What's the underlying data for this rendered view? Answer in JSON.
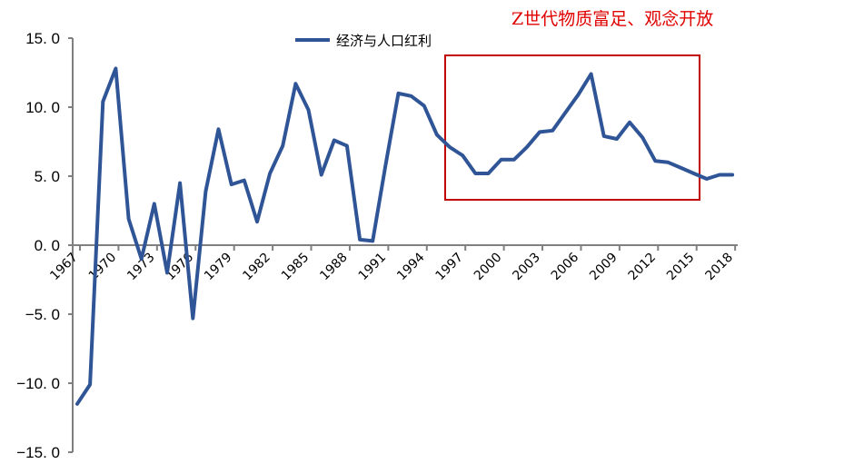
{
  "chart_data": {
    "type": "line",
    "title": "",
    "xlabel": "",
    "ylabel": "",
    "ylim": [
      -15,
      15
    ],
    "yticks": [
      "15.0",
      "10.0",
      "5.0",
      "0.0",
      "-5.0",
      "-10.0",
      "-15.0"
    ],
    "xtick_labels": [
      "1967",
      "1970",
      "1973",
      "1976",
      "1979",
      "1982",
      "1985",
      "1988",
      "1991",
      "1994",
      "1997",
      "2000",
      "2003",
      "2006",
      "2009",
      "2012",
      "2015",
      "2018"
    ],
    "grid": false,
    "legend_position": "top-center",
    "annotation": "Z世代物质富足、观念开放",
    "highlight_box": {
      "x_from": 1997,
      "x_to": 2016,
      "color": "#c00000"
    },
    "series": [
      {
        "name": "经济与人口红利",
        "color": "#2f5597",
        "x": [
          1967,
          1968,
          1969,
          1970,
          1971,
          1972,
          1973,
          1974,
          1975,
          1976,
          1977,
          1978,
          1979,
          1980,
          1981,
          1982,
          1983,
          1984,
          1985,
          1986,
          1987,
          1988,
          1989,
          1990,
          1991,
          1992,
          1993,
          1994,
          1995,
          1996,
          1997,
          1998,
          1999,
          2000,
          2001,
          2002,
          2003,
          2004,
          2005,
          2006,
          2007,
          2008,
          2009,
          2010,
          2011,
          2012,
          2013,
          2014,
          2015,
          2016,
          2017,
          2018
        ],
        "values": [
          -11.5,
          -10.1,
          10.4,
          12.8,
          1.9,
          -1.0,
          3.0,
          -2.0,
          4.5,
          -5.3,
          3.9,
          8.4,
          4.4,
          4.7,
          1.7,
          5.2,
          7.2,
          11.7,
          9.8,
          5.1,
          7.6,
          7.2,
          0.4,
          0.3,
          5.8,
          11.0,
          10.8,
          10.1,
          8.0,
          7.1,
          6.5,
          5.2,
          5.2,
          6.2,
          6.2,
          7.1,
          8.2,
          8.3,
          9.6,
          10.9,
          12.4,
          7.9,
          7.7,
          8.9,
          7.8,
          6.1,
          6.0,
          5.6,
          5.2,
          4.8,
          5.1,
          5.1
        ]
      }
    ]
  }
}
